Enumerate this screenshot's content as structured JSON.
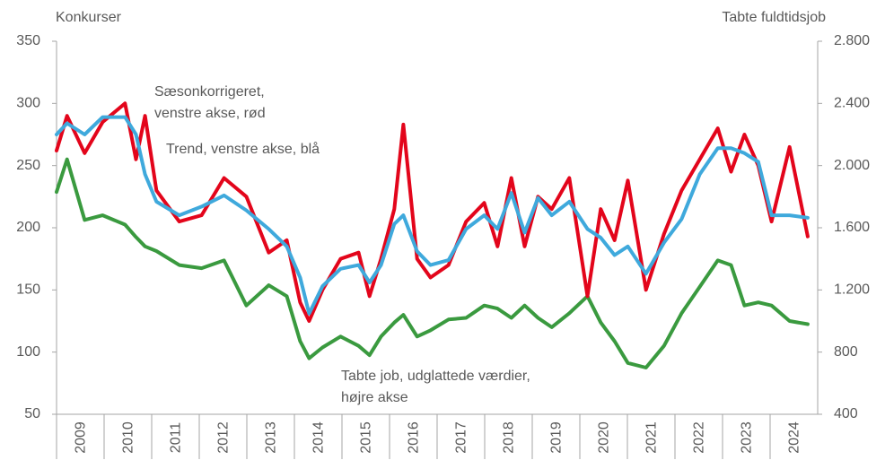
{
  "chart_data": {
    "type": "line",
    "ylabel": "Konkurser",
    "y2label": "Tabte fuldtidsjob",
    "annotations": [
      [
        "Sæsonkorrigeret,",
        "venstre akse, rød"
      ],
      [
        "Trend, venstre akse, blå"
      ],
      [
        "Tabte job, udglattede værdier,",
        "højre akse"
      ]
    ],
    "xlim": [
      2009,
      2025
    ],
    "xticks": [
      2009,
      2010,
      2011,
      2012,
      2013,
      2014,
      2015,
      2016,
      2017,
      2018,
      2019,
      2020,
      2021,
      2022,
      2023,
      2024
    ],
    "ylim": [
      50,
      350
    ],
    "yticks": [
      50,
      100,
      150,
      200,
      250,
      300,
      350
    ],
    "y2lim": [
      400,
      2800
    ],
    "y2ticks": [
      400,
      800,
      {
        "value": 1200,
        "label": "1.200"
      },
      {
        "value": 1600,
        "label": "1.600"
      },
      {
        "value": 2000,
        "label": "2.000"
      },
      {
        "value": 2400,
        "label": "2.400"
      },
      {
        "value": 2800,
        "label": "2.800"
      }
    ],
    "grid": false,
    "x": [
      2009.0,
      2009.22,
      2009.59,
      2009.97,
      2010.44,
      2010.67,
      2010.86,
      2011.1,
      2011.58,
      2012.05,
      2012.52,
      2012.99,
      2013.46,
      2013.84,
      2014.12,
      2014.31,
      2014.59,
      2014.97,
      2015.35,
      2015.58,
      2015.82,
      2016.1,
      2016.29,
      2016.58,
      2016.86,
      2017.24,
      2017.61,
      2017.99,
      2018.27,
      2018.56,
      2018.84,
      2019.12,
      2019.41,
      2019.78,
      2020.16,
      2020.44,
      2020.73,
      2021.01,
      2021.39,
      2021.77,
      2022.14,
      2022.52,
      2022.9,
      2023.18,
      2023.46,
      2023.75,
      2024.03,
      2024.41,
      2024.79
    ],
    "series": [
      {
        "name": "Tabte job",
        "color": "#3a9a3f",
        "axis": "y2",
        "values": [
          1830,
          2040,
          1650,
          1680,
          1620,
          1540,
          1480,
          1450,
          1360,
          1340,
          1390,
          1100,
          1230,
          1160,
          870,
          760,
          830,
          900,
          840,
          780,
          900,
          990,
          1040,
          900,
          940,
          1010,
          1020,
          1100,
          1080,
          1020,
          1100,
          1020,
          960,
          1050,
          1160,
          990,
          870,
          730,
          700,
          840,
          1050,
          1220,
          1390,
          1360,
          1100,
          1120,
          1100,
          1000,
          980
        ]
      },
      {
        "name": "Sæsonkorrigeret",
        "color": "#e3051b",
        "values": [
          262,
          290,
          260,
          285,
          300,
          255,
          290,
          230,
          205,
          210,
          240,
          225,
          180,
          190,
          140,
          125,
          150,
          175,
          180,
          145,
          175,
          215,
          283,
          175,
          160,
          170,
          205,
          220,
          185,
          240,
          185,
          225,
          215,
          240,
          145,
          215,
          190,
          238,
          150,
          195,
          230,
          255,
          280,
          245,
          275,
          250,
          205,
          265,
          193
        ]
      },
      {
        "name": "Trend",
        "color": "#3fa9dc",
        "values": [
          275,
          284,
          275,
          289,
          289,
          275,
          243,
          221,
          210,
          217,
          226,
          214,
          199,
          185,
          160,
          131,
          153,
          167,
          170,
          156,
          170,
          203,
          210,
          181,
          170,
          174,
          199,
          210,
          199,
          228,
          196,
          224,
          210,
          221,
          199,
          192,
          178,
          185,
          163,
          188,
          207,
          243,
          264,
          264,
          260,
          253,
          210,
          210,
          208
        ]
      }
    ]
  }
}
